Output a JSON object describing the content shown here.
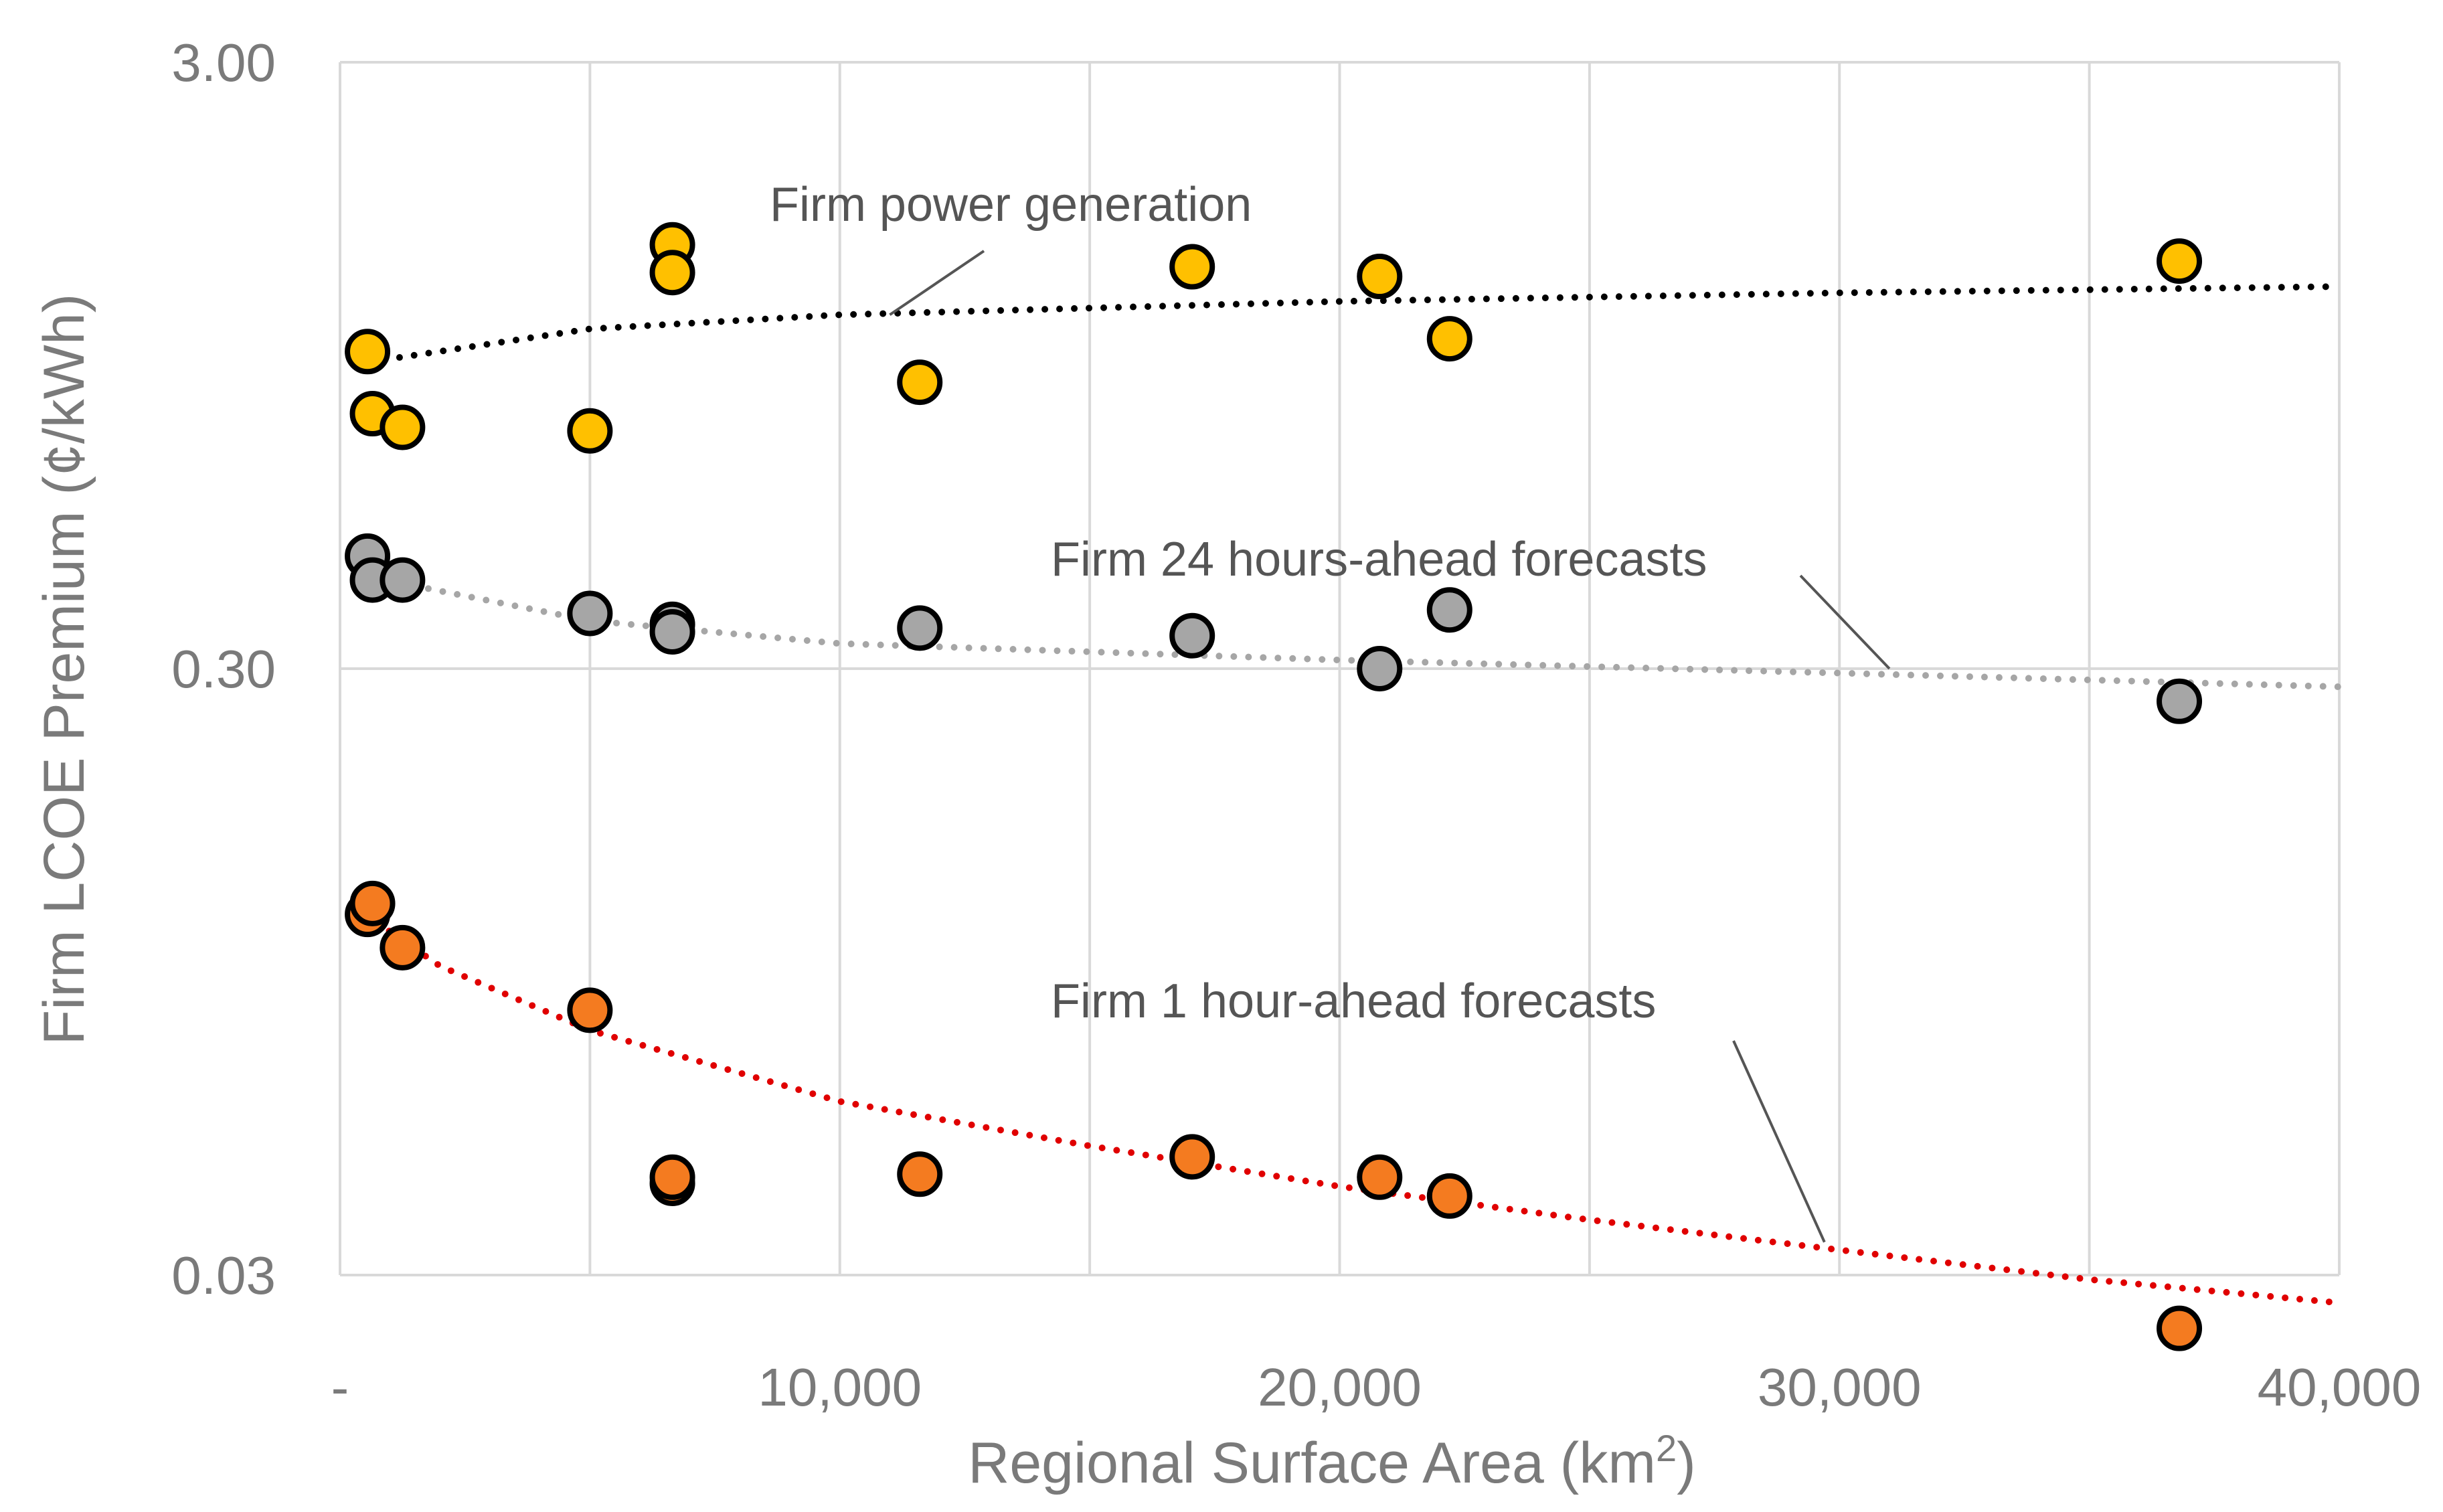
{
  "chart_data": {
    "type": "scatter",
    "xlabel": "Regional Surface Area (km",
    "xlabel_sup": "2",
    "xlabel_close": ")",
    "ylabel": "Firm LCOE Premium (¢/kWh)",
    "xlim": [
      0,
      40000
    ],
    "ylim": [
      0.03,
      3.0
    ],
    "yscale": "log",
    "x_tick_labels": [
      "-",
      "10,000",
      "20,000",
      "30,000",
      "40,000"
    ],
    "y_tick_labels": [
      "0.03",
      "0.30",
      "3.00"
    ],
    "grid": true,
    "series": [
      {
        "name": "Firm power generation",
        "marker_color": "#FFC000",
        "trend_color": "#000000",
        "points": [
          {
            "x": 550,
            "y": 1.0
          },
          {
            "x": 650,
            "y": 0.79
          },
          {
            "x": 1250,
            "y": 0.75
          },
          {
            "x": 5000,
            "y": 0.74
          },
          {
            "x": 6650,
            "y": 1.5
          },
          {
            "x": 6650,
            "y": 1.35
          },
          {
            "x": 11600,
            "y": 0.89
          },
          {
            "x": 17050,
            "y": 1.38
          },
          {
            "x": 20800,
            "y": 1.33
          },
          {
            "x": 22200,
            "y": 1.05
          },
          {
            "x": 36800,
            "y": 1.41
          }
        ],
        "trend": [
          {
            "x": 900,
            "y": 0.97
          },
          {
            "x": 5000,
            "y": 1.09
          },
          {
            "x": 10000,
            "y": 1.15
          },
          {
            "x": 20000,
            "y": 1.21
          },
          {
            "x": 30000,
            "y": 1.25
          },
          {
            "x": 40000,
            "y": 1.28
          }
        ]
      },
      {
        "name": "Firm 24 hours-ahead forecasts",
        "marker_color": "#A6A6A6",
        "trend_color": "#A6A6A6",
        "points": [
          {
            "x": 550,
            "y": 0.46
          },
          {
            "x": 650,
            "y": 0.42
          },
          {
            "x": 1250,
            "y": 0.42
          },
          {
            "x": 5000,
            "y": 0.37
          },
          {
            "x": 6650,
            "y": 0.355
          },
          {
            "x": 6650,
            "y": 0.345
          },
          {
            "x": 11600,
            "y": 0.35
          },
          {
            "x": 17050,
            "y": 0.34
          },
          {
            "x": 20800,
            "y": 0.3
          },
          {
            "x": 22200,
            "y": 0.375
          },
          {
            "x": 36800,
            "y": 0.265
          }
        ],
        "trend": [
          {
            "x": 900,
            "y": 0.42
          },
          {
            "x": 5000,
            "y": 0.36
          },
          {
            "x": 10000,
            "y": 0.33
          },
          {
            "x": 20000,
            "y": 0.31
          },
          {
            "x": 30000,
            "y": 0.295
          },
          {
            "x": 40000,
            "y": 0.28
          }
        ]
      },
      {
        "name": "Firm 1 hour-ahead forecasts",
        "marker_color": "#F47B20",
        "trend_color": "#E00000",
        "points": [
          {
            "x": 550,
            "y": 0.118
          },
          {
            "x": 650,
            "y": 0.123
          },
          {
            "x": 1250,
            "y": 0.104
          },
          {
            "x": 5000,
            "y": 0.082
          },
          {
            "x": 6650,
            "y": 0.0425
          },
          {
            "x": 6650,
            "y": 0.0435
          },
          {
            "x": 11600,
            "y": 0.044
          },
          {
            "x": 17050,
            "y": 0.047
          },
          {
            "x": 20800,
            "y": 0.0435
          },
          {
            "x": 22200,
            "y": 0.0405
          },
          {
            "x": 36800,
            "y": 0.0245
          }
        ],
        "trend": [
          {
            "x": 500,
            "y": 0.118
          },
          {
            "x": 2000,
            "y": 0.097
          },
          {
            "x": 5000,
            "y": 0.076
          },
          {
            "x": 10000,
            "y": 0.058
          },
          {
            "x": 15000,
            "y": 0.049
          },
          {
            "x": 20000,
            "y": 0.042
          },
          {
            "x": 25000,
            "y": 0.037
          },
          {
            "x": 30000,
            "y": 0.033
          },
          {
            "x": 35000,
            "y": 0.0295
          },
          {
            "x": 40000,
            "y": 0.027
          }
        ]
      }
    ],
    "annotations": [
      {
        "text": "Firm power generation",
        "series": 0,
        "pointer_to": {
          "x": 11000,
          "y": 1.15
        }
      },
      {
        "text": "Firm 24 hours-ahead forecasts",
        "series": 1,
        "pointer_to": {
          "x": 31000,
          "y": 0.3
        }
      },
      {
        "text": "Firm 1 hour-ahead forecasts",
        "series": 2,
        "pointer_to": {
          "x": 29700,
          "y": 0.034
        }
      }
    ]
  }
}
